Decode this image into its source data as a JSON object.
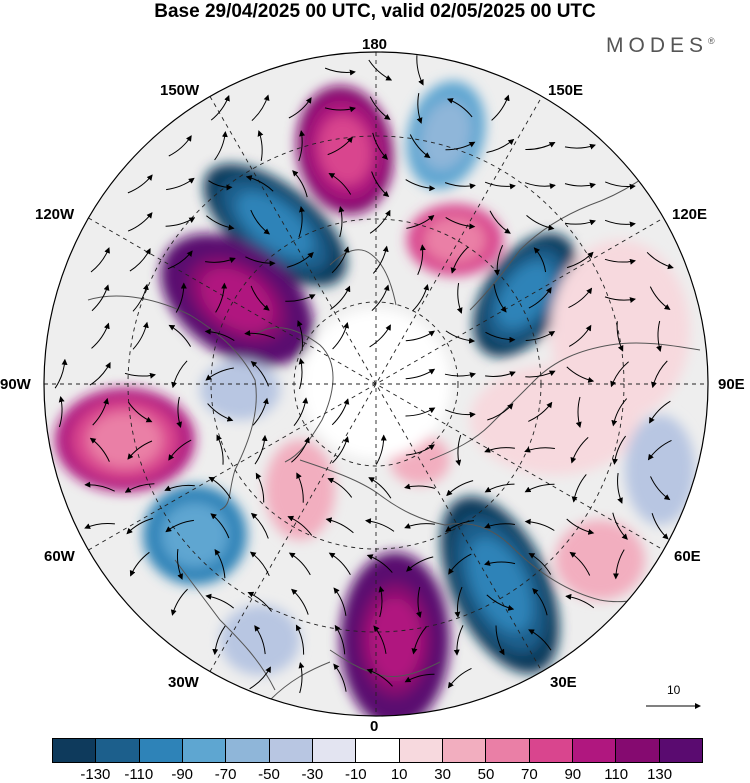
{
  "title": "Base 29/04/2025 00 UTC, valid 02/05/2025 00 UTC",
  "brand": "MODES",
  "brand_mark": "®",
  "longitude_labels": {
    "l180": "180",
    "l150w": "150W",
    "l150e": "150E",
    "l120w": "120W",
    "l120e": "120E",
    "l90w": "90W",
    "l90e": "90E",
    "l60w": "60W",
    "l60e": "60E",
    "l30w": "30W",
    "l30e": "30E",
    "l0": "0"
  },
  "vector_reference": {
    "label": "10",
    "icon": "arrow-right-icon"
  },
  "colorbar": {
    "ticks": [
      "-130",
      "-110",
      "-90",
      "-70",
      "-50",
      "-30",
      "-10",
      "10",
      "30",
      "50",
      "70",
      "90",
      "110",
      "130"
    ],
    "colors": [
      "#0e3a5c",
      "#1c5f8c",
      "#2e83b8",
      "#5ea6d1",
      "#8fb6d9",
      "#b8c6e2",
      "#e3e4f1",
      "#ffffff",
      "#f7d9de",
      "#f2aebf",
      "#ea7fa6",
      "#d9458e",
      "#b0177f",
      "#850a70",
      "#5a0b70"
    ]
  },
  "map_colors": {
    "ocean_neutral": "#efefef",
    "land_line": "#555555",
    "grid_line": "#222222"
  }
}
